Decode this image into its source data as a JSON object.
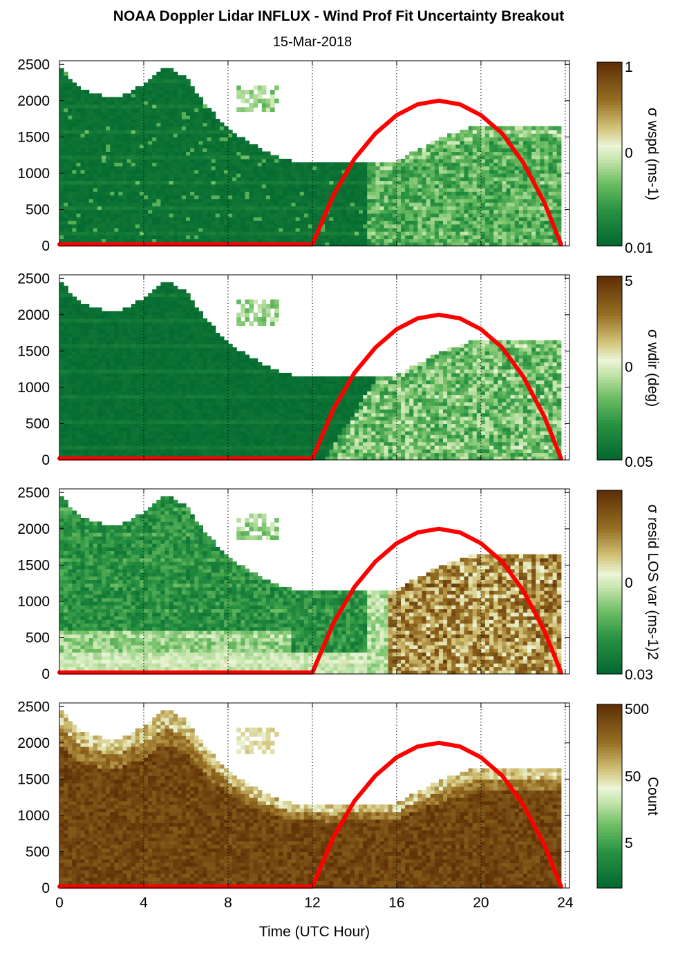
{
  "title": "NOAA Doppler Lidar INFLUX - Wind Prof Fit Uncertainty Breakout",
  "subtitle": "15-Mar-2018",
  "xlabel": "Time (UTC Hour)",
  "x_ticks": [
    "0",
    "4",
    "8",
    "12",
    "16",
    "20",
    "24"
  ],
  "y_ticks": [
    "0",
    "500",
    "1000",
    "1500",
    "2000",
    "2500"
  ],
  "colors": {
    "green_dark": "#00662f",
    "green_light": "#e3f4d0",
    "brown_dark": "#5e3006",
    "sun_curve": "#ff0000"
  },
  "chart_data": [
    {
      "type": "heatmap",
      "panel": 1,
      "colorbar_label": "σ wspd (ms-1)",
      "colorbar_ticks": [
        "1",
        "0",
        "0.01"
      ],
      "x": [
        0,
        4,
        8,
        12,
        16,
        20,
        24
      ],
      "xlim": [
        0,
        24
      ],
      "ylim": [
        0,
        2500
      ],
      "top_height_profile": {
        "x": [
          0,
          1,
          2,
          3,
          4,
          5,
          6,
          7,
          8,
          9,
          10,
          11,
          12,
          13,
          14,
          15,
          16,
          17,
          18,
          19,
          20,
          21,
          22,
          23,
          23.7
        ],
        "y": [
          2450,
          2150,
          2050,
          2050,
          2200,
          2450,
          2300,
          1900,
          1600,
          1400,
          1250,
          1150,
          1150,
          1100,
          1150,
          1150,
          1150,
          1300,
          1450,
          1550,
          1650,
          1650,
          1650,
          1650,
          1650
        ]
      },
      "typical_level": "low (dark green) before 15 UTC, moderate (light green) after 15 UTC"
    },
    {
      "type": "heatmap",
      "panel": 2,
      "colorbar_label": "σ wdir (deg)",
      "colorbar_ticks": [
        "5",
        "0",
        "0.05"
      ],
      "xlim": [
        0,
        24
      ],
      "ylim": [
        0,
        2500
      ],
      "typical_level": "low (dark green) before 13 UTC, moderate (light green) after 14 UTC"
    },
    {
      "type": "heatmap",
      "panel": 3,
      "colorbar_label": "σ resid LOS var (ms-1)2",
      "colorbar_ticks": [
        "0",
        "0.03"
      ],
      "xlim": [
        0,
        24
      ],
      "ylim": [
        0,
        2500
      ],
      "typical_level": "mixed green before 12 UTC, light near surface; tan to brown after 15 UTC"
    },
    {
      "type": "heatmap",
      "panel": 4,
      "colorbar_label": "Count",
      "colorbar_ticks": [
        "500",
        "50",
        "5"
      ],
      "xlim": [
        0,
        24
      ],
      "ylim": [
        0,
        2500
      ],
      "typical_level": "high (dark brown) throughout, lighter near the top edge"
    }
  ],
  "overlay_line": {
    "color": "#ff0000",
    "x": [
      0,
      12,
      13,
      14,
      15,
      16,
      17,
      18,
      19,
      20,
      21,
      22,
      23,
      23.8
    ],
    "y": [
      20,
      20,
      700,
      1200,
      1550,
      1800,
      1950,
      2000,
      1950,
      1800,
      1550,
      1150,
      600,
      20
    ]
  }
}
